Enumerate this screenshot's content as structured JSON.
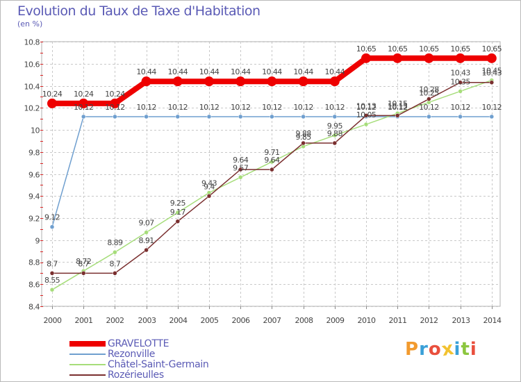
{
  "header": {
    "title": "Evolution du Taux de Taxe d'Habitation",
    "unit_label": "(en %)"
  },
  "logo": {
    "text": "Proxiti",
    "letters": [
      {
        "char": "P",
        "color": "#f29a2e"
      },
      {
        "char": "r",
        "color": "#3aa0d8"
      },
      {
        "char": "o",
        "color": "#e94f3d"
      },
      {
        "char": "x",
        "color": "#f2c230"
      },
      {
        "char": "i",
        "color": "#3aa0d8"
      },
      {
        "char": "t",
        "color": "#8cc63f"
      },
      {
        "char": "i",
        "color": "#e94f3d"
      }
    ]
  },
  "chart_data": {
    "type": "line",
    "title": "Evolution du Taux de Taxe d'Habitation",
    "ylabel": "(en %)",
    "xlabel": "",
    "x": [
      "2000",
      "2001",
      "2002",
      "2003",
      "2004",
      "2005",
      "2006",
      "2007",
      "2008",
      "2009",
      "2010",
      "2011",
      "2012",
      "2013",
      "2014"
    ],
    "ylim": [
      8.4,
      10.8
    ],
    "yticks": [
      8.4,
      8.6,
      8.8,
      9,
      9.2,
      9.4,
      9.6,
      9.8,
      10,
      10.2,
      10.4,
      10.6,
      10.8
    ],
    "ytick_labels": [
      "8.4",
      "8.6",
      "8.8",
      "9",
      "9.2",
      "9.4",
      "9.6",
      "9.8",
      "10",
      "10.2",
      "10.4",
      "10.6",
      "10.8"
    ],
    "grid": true,
    "legend_position": "bottom-left",
    "series": [
      {
        "name": "GRAVELOTTE",
        "color": "#ee0000",
        "values": [
          10.24,
          10.24,
          10.24,
          10.44,
          10.44,
          10.44,
          10.44,
          10.44,
          10.44,
          10.44,
          10.65,
          10.65,
          10.65,
          10.65,
          10.65
        ],
        "labels": [
          "10.24",
          "10.24",
          "10.24",
          "10.44",
          "10.44",
          "10.44",
          "10.44",
          "10.44",
          "10.44",
          "10.44",
          "10.65",
          "10.65",
          "10.65",
          "10.65",
          "10.65"
        ]
      },
      {
        "name": "Rezonville",
        "color": "#6f9fcf",
        "values": [
          9.12,
          10.12,
          10.12,
          10.12,
          10.12,
          10.12,
          10.12,
          10.12,
          10.12,
          10.12,
          10.12,
          10.12,
          10.12,
          10.12,
          10.12
        ],
        "labels": [
          "9.12",
          "10.12",
          "10.12",
          "10.12",
          "10.12",
          "10.12",
          "10.12",
          "10.12",
          "10.12",
          "10.12",
          "10.12",
          "10.12",
          "10.12",
          "10.12",
          "10.12"
        ]
      },
      {
        "name": "Châtel-Saint-Germain",
        "color": "#a6dd7a",
        "values": [
          8.55,
          8.72,
          8.89,
          9.07,
          9.25,
          9.43,
          9.57,
          9.71,
          9.85,
          9.95,
          10.05,
          10.15,
          10.25,
          10.35,
          10.45
        ],
        "labels": [
          "8.55",
          "8.72",
          "8.89",
          "9.07",
          "9.25",
          "9.43",
          "9.57",
          "9.71",
          "9.85",
          "9.95",
          "10.05",
          "10.15",
          "10.25",
          "10.35",
          "10.45"
        ]
      },
      {
        "name": "Rozérieulles",
        "color": "#7a2f2f",
        "values": [
          8.7,
          8.7,
          8.7,
          8.91,
          9.17,
          9.4,
          9.64,
          9.64,
          9.88,
          9.88,
          10.13,
          10.13,
          10.28,
          10.43,
          10.43
        ],
        "labels": [
          "8.7",
          "8.7",
          "8.7",
          "8.91",
          "9.17",
          "9.4",
          "9.64",
          "9.64",
          "9.88",
          "9.88",
          "10.13",
          "10.13",
          "10.28",
          "10.43",
          "10.43"
        ]
      }
    ]
  }
}
